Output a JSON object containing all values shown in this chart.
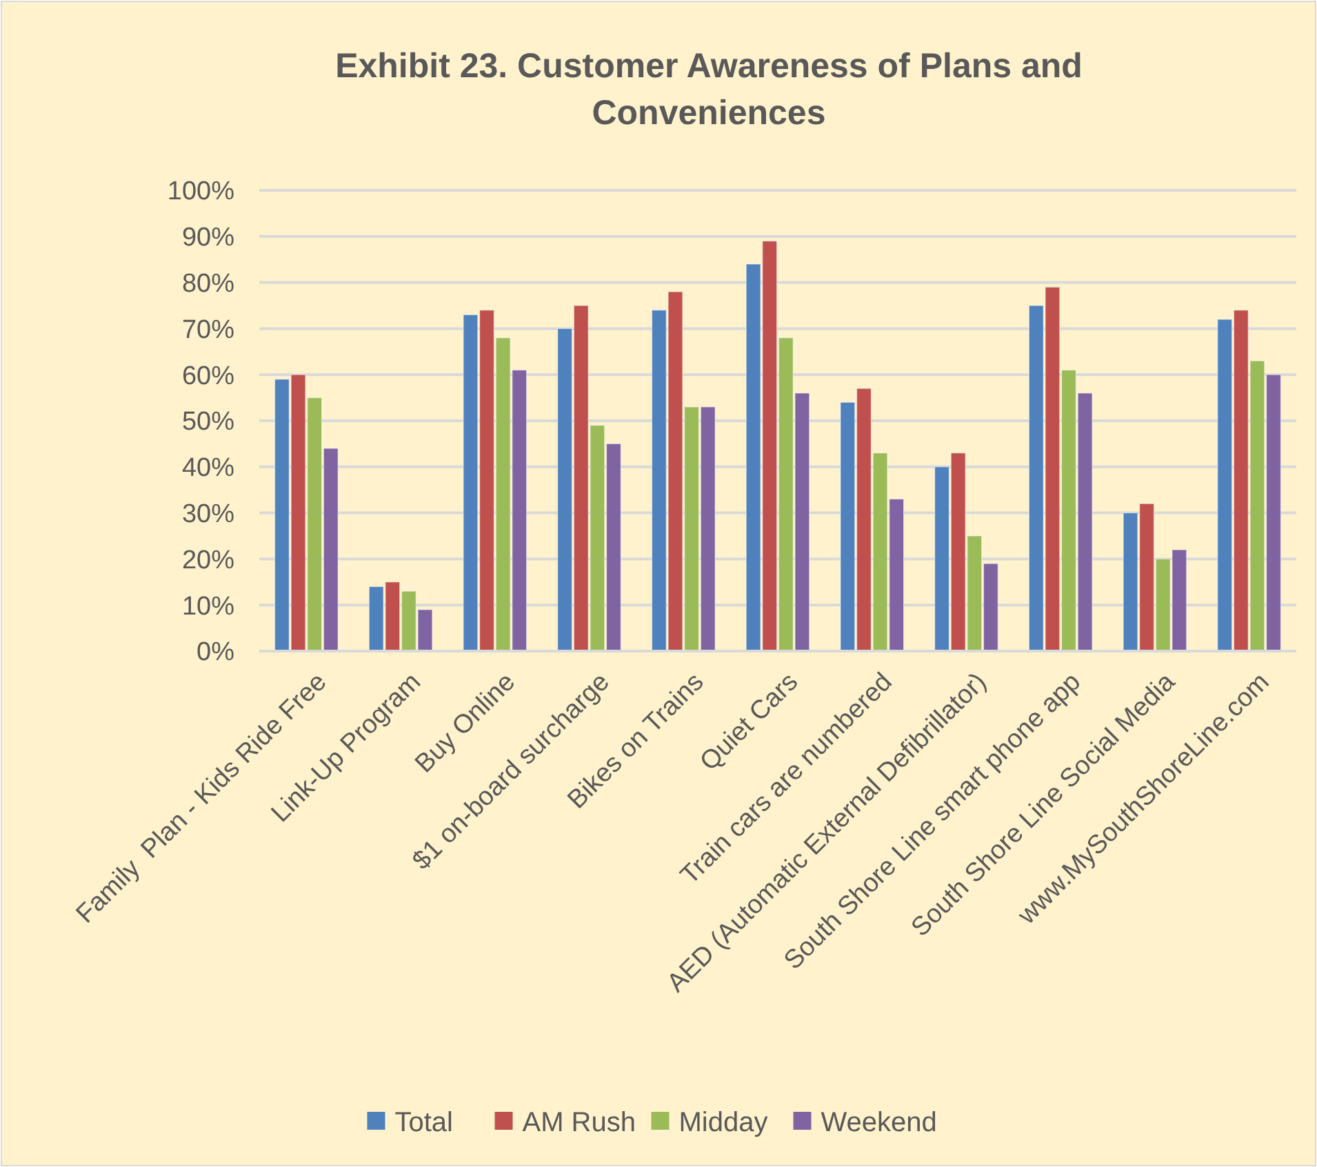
{
  "chart_data": {
    "type": "bar",
    "title": "Exhibit 23. Customer Awareness of Plans and Conveniences",
    "categories": [
      "Family  Plan - Kids Ride Free",
      "Link-Up Program",
      "Buy Online",
      "$1 on-board surcharge",
      "Bikes on Trains",
      "Quiet Cars",
      "Train cars are numbered",
      "AED (Automatic External Defibrillator)",
      "South Shore Line smart phone app",
      "South Shore Line Social Media",
      "www.MySouthShoreLine.com"
    ],
    "series": [
      {
        "name": "Total",
        "color": "#4f81bd",
        "values": [
          59,
          14,
          73,
          70,
          74,
          84,
          54,
          40,
          75,
          30,
          72
        ]
      },
      {
        "name": "AM Rush",
        "color": "#c0504d",
        "values": [
          60,
          15,
          74,
          75,
          78,
          89,
          57,
          43,
          79,
          32,
          74
        ]
      },
      {
        "name": "Midday",
        "color": "#9bbb59",
        "values": [
          55,
          13,
          68,
          49,
          53,
          68,
          43,
          25,
          61,
          20,
          63
        ]
      },
      {
        "name": "Weekend",
        "color": "#8064a2",
        "values": [
          44,
          9,
          61,
          45,
          53,
          56,
          33,
          19,
          56,
          22,
          60
        ]
      }
    ],
    "ylim": [
      0,
      100
    ],
    "yticks": [
      {
        "value": 0,
        "label": "0%"
      },
      {
        "value": 10,
        "label": "10%"
      },
      {
        "value": 20,
        "label": "20%"
      },
      {
        "value": 30,
        "label": "30%"
      },
      {
        "value": 40,
        "label": "40%"
      },
      {
        "value": 50,
        "label": "50%"
      },
      {
        "value": 60,
        "label": "60%"
      },
      {
        "value": 70,
        "label": "70%"
      },
      {
        "value": 80,
        "label": "80%"
      },
      {
        "value": 90,
        "label": "90%"
      },
      {
        "value": 100,
        "label": "100%"
      }
    ],
    "grid": "y",
    "legend": "bottom"
  }
}
